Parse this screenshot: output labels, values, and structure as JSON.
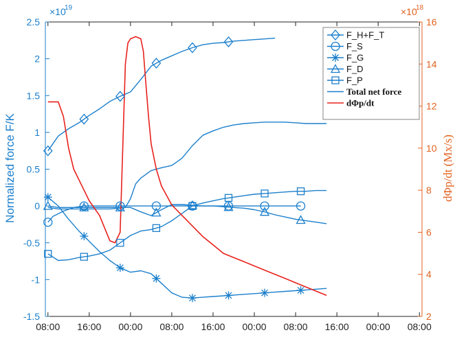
{
  "chart_data": {
    "type": "line",
    "title": "",
    "xlabel": "",
    "ylabel_left": "Normalized force F/K",
    "ylabel_right": "dΦp/dt (Mx/s)",
    "left_exponent_label": "×10",
    "left_exponent_power": "19",
    "right_exponent_label": "×10",
    "right_exponent_power": "18",
    "ylim_left": [
      -1.5,
      2.5
    ],
    "ylim_right": [
      2,
      16
    ],
    "xlim_hours": [
      -0.5,
      72.5
    ],
    "x_ticks": [
      {
        "label": "08:00",
        "x": 0
      },
      {
        "label": "16:00",
        "x": 8
      },
      {
        "label": "00:00",
        "x": 16
      },
      {
        "label": "08:00",
        "x": 24
      },
      {
        "label": "16:00",
        "x": 32
      },
      {
        "label": "00:00",
        "x": 40
      },
      {
        "label": "08:00",
        "x": 48
      },
      {
        "label": "16:00",
        "x": 56
      },
      {
        "label": "00:00",
        "x": 64
      },
      {
        "label": "08:00",
        "x": 72
      }
    ],
    "y_ticks_left": [
      "-1.5",
      "-1",
      "-0.5",
      "0",
      "0.5",
      "1",
      "1.5",
      "2",
      "2.5"
    ],
    "y_ticks_left_values": [
      -1.5,
      -1,
      -0.5,
      0,
      0.5,
      1,
      1.5,
      2,
      2.5
    ],
    "y_ticks_right": [
      "2",
      "4",
      "6",
      "8",
      "10",
      "12",
      "14",
      "16"
    ],
    "y_ticks_right_values": [
      2,
      4,
      6,
      8,
      10,
      12,
      14,
      16
    ],
    "grid": false,
    "legend_position": "top-right",
    "colors": {
      "force": "#1b7fcc",
      "flux": "#e8201b",
      "right_axis": "#e1621f"
    },
    "series": [
      {
        "name": "F_H+F_T",
        "axis": "left",
        "marker": "diamond",
        "x": [
          0,
          2,
          4,
          6,
          8,
          10,
          12,
          14,
          16,
          18,
          20,
          22,
          24,
          26,
          28,
          30,
          32,
          34,
          36,
          38,
          40,
          42,
          44
        ],
        "y": [
          0.75,
          0.95,
          1.05,
          1.13,
          1.23,
          1.32,
          1.42,
          1.49,
          1.55,
          1.72,
          1.9,
          1.98,
          2.04,
          2.1,
          2.15,
          2.19,
          2.21,
          2.22,
          2.24,
          2.25,
          2.26,
          2.27,
          2.28
        ],
        "marker_x": [
          0,
          7,
          14,
          21,
          28,
          35
        ]
      },
      {
        "name": "F_S",
        "axis": "left",
        "marker": "circle",
        "x": [
          0,
          1,
          3,
          5,
          7,
          9,
          11,
          13,
          15,
          17,
          19,
          21,
          23,
          25,
          27,
          29,
          31,
          33,
          35,
          37,
          39,
          41,
          43,
          45,
          47,
          49
        ],
        "y": [
          -0.22,
          -0.14,
          -0.07,
          -0.02,
          0.0,
          0.0,
          0.0,
          0.0,
          0.0,
          0.0,
          0.0,
          0.0,
          0.0,
          0.0,
          0.0,
          0.0,
          0.0,
          0.0,
          0.0,
          0.0,
          0.0,
          0.0,
          0.0,
          0.0,
          0.0,
          0.0
        ],
        "marker_x": [
          0,
          7,
          14,
          21,
          28,
          35,
          42,
          49
        ]
      },
      {
        "name": "F_G",
        "axis": "left",
        "marker": "asterisk",
        "x": [
          0,
          2,
          4,
          6,
          8,
          10,
          12,
          14,
          16,
          18,
          20,
          22,
          24,
          26,
          28,
          30,
          32,
          34,
          36,
          38,
          40,
          42,
          44,
          46,
          48,
          50,
          52,
          54
        ],
        "y": [
          0.12,
          0.0,
          -0.18,
          -0.34,
          -0.48,
          -0.62,
          -0.74,
          -0.84,
          -0.9,
          -0.88,
          -0.92,
          -1.05,
          -1.18,
          -1.24,
          -1.25,
          -1.24,
          -1.23,
          -1.22,
          -1.21,
          -1.2,
          -1.19,
          -1.18,
          -1.17,
          -1.16,
          -1.15,
          -1.14,
          -1.13,
          -1.12
        ],
        "marker_x": [
          0,
          7,
          14,
          21,
          28,
          35,
          42,
          49
        ]
      },
      {
        "name": "F_D",
        "axis": "left",
        "marker": "triangle",
        "x": [
          0,
          2,
          4,
          6,
          8,
          10,
          12,
          14,
          16,
          18,
          20,
          22,
          24,
          26,
          28,
          30,
          32,
          34,
          36,
          38,
          40,
          42,
          44,
          46,
          48,
          50,
          52,
          54
        ],
        "y": [
          0.0,
          -0.02,
          -0.02,
          -0.02,
          -0.02,
          -0.02,
          -0.02,
          -0.02,
          -0.02,
          -0.08,
          -0.13,
          -0.05,
          0.02,
          0.02,
          0.01,
          0.0,
          0.0,
          -0.01,
          -0.02,
          -0.03,
          -0.05,
          -0.08,
          -0.12,
          -0.15,
          -0.18,
          -0.2,
          -0.22,
          -0.24
        ],
        "marker_x": [
          0,
          7,
          14,
          21,
          28,
          35,
          42,
          49
        ]
      },
      {
        "name": "F_P",
        "axis": "left",
        "marker": "square",
        "x": [
          0,
          2,
          4,
          6,
          8,
          10,
          12,
          14,
          16,
          18,
          20,
          22,
          24,
          26,
          28,
          30,
          32,
          34,
          36,
          38,
          40,
          42,
          44,
          46,
          48,
          50,
          52,
          54
        ],
        "y": [
          -0.65,
          -0.74,
          -0.73,
          -0.7,
          -0.68,
          -0.65,
          -0.6,
          -0.5,
          -0.4,
          -0.34,
          -0.32,
          -0.28,
          -0.2,
          -0.1,
          0.0,
          0.04,
          0.07,
          0.1,
          0.12,
          0.14,
          0.16,
          0.17,
          0.18,
          0.19,
          0.2,
          0.2,
          0.21,
          0.21
        ],
        "marker_x": [
          0,
          7,
          14,
          21,
          28,
          35,
          42,
          49
        ]
      },
      {
        "name": "Total net force",
        "axis": "left",
        "marker": "none",
        "x": [
          0,
          2,
          4,
          6,
          8,
          10,
          12,
          14,
          15,
          16,
          17,
          18,
          20,
          22,
          24,
          26,
          28,
          30,
          32,
          34,
          36,
          38,
          40,
          42,
          44,
          46,
          48,
          50,
          52,
          54
        ],
        "y": [
          -0.02,
          -0.04,
          -0.04,
          -0.04,
          -0.04,
          -0.04,
          -0.04,
          -0.03,
          -0.02,
          0.1,
          0.3,
          0.38,
          0.48,
          0.52,
          0.55,
          0.65,
          0.82,
          0.96,
          1.02,
          1.07,
          1.1,
          1.12,
          1.13,
          1.14,
          1.14,
          1.14,
          1.13,
          1.12,
          1.12,
          1.12
        ]
      },
      {
        "name": "dΦp/dt",
        "axis": "right",
        "marker": "none",
        "x": [
          0,
          2,
          3,
          4,
          5,
          6,
          8,
          10,
          11,
          12,
          13,
          14,
          15,
          15.5,
          16,
          17,
          18,
          18.5,
          19,
          19.5,
          20,
          21,
          22,
          24,
          26,
          28,
          30,
          32,
          34,
          36,
          38,
          40,
          42,
          44,
          46,
          48,
          50,
          52,
          54
        ],
        "y": [
          12.2,
          12.2,
          11.5,
          10.0,
          9.0,
          8.5,
          7.5,
          6.8,
          6.2,
          5.6,
          5.5,
          6.0,
          14.0,
          15.0,
          15.2,
          15.3,
          15.2,
          14.6,
          13.0,
          11.5,
          10.2,
          9.0,
          8.2,
          7.3,
          6.8,
          6.3,
          5.8,
          5.4,
          5.0,
          4.8,
          4.6,
          4.4,
          4.2,
          4.0,
          3.8,
          3.6,
          3.4,
          3.2,
          3.0
        ]
      }
    ],
    "legend_items": [
      "F_H+F_T",
      "F_S",
      "F_G",
      "F_D",
      "F_P",
      "Total net force",
      "dΦp/dt"
    ]
  }
}
